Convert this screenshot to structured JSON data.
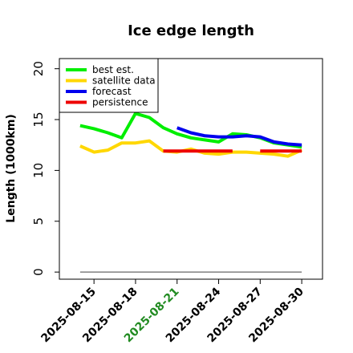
{
  "chart_data": {
    "type": "line",
    "title": "Ice edge length",
    "xlabel": "",
    "ylabel": "Length (1000km)",
    "ylim": [
      -0.7,
      21
    ],
    "xlim": [
      "2025-08-12T12:00",
      "2025-08-31T12:00"
    ],
    "yticks": [
      0,
      5,
      10,
      15,
      20
    ],
    "xticks": [
      "2025-08-15",
      "2025-08-18",
      "2025-08-21",
      "2025-08-24",
      "2025-08-27",
      "2025-08-30"
    ],
    "highlighted_xtick": "2025-08-21",
    "highlight_color": "#228B22",
    "legend_position": "top-left",
    "grid": false,
    "series": [
      {
        "name": "best est.",
        "color": "#00ee00",
        "x": [
          "2025-08-14",
          "2025-08-15",
          "2025-08-16",
          "2025-08-17",
          "2025-08-18",
          "2025-08-19",
          "2025-08-20",
          "2025-08-21",
          "2025-08-22",
          "2025-08-23",
          "2025-08-24",
          "2025-08-25",
          "2025-08-26",
          "2025-08-27",
          "2025-08-28",
          "2025-08-29",
          "2025-08-30"
        ],
        "values": [
          14.4,
          14.1,
          13.7,
          13.2,
          15.6,
          15.2,
          14.2,
          13.6,
          13.2,
          13.0,
          12.8,
          13.6,
          13.5,
          13.2,
          12.7,
          12.5,
          12.3
        ]
      },
      {
        "name": "satellite data",
        "color": "#ffd700",
        "x": [
          "2025-08-14",
          "2025-08-15",
          "2025-08-16",
          "2025-08-17",
          "2025-08-18",
          "2025-08-19",
          "2025-08-20",
          "2025-08-21",
          "2025-08-22",
          "2025-08-23",
          "2025-08-24",
          "2025-08-25",
          "2025-08-26",
          "2025-08-27",
          "2025-08-28",
          "2025-08-29",
          "2025-08-30"
        ],
        "values": [
          12.4,
          11.8,
          12.0,
          12.7,
          12.7,
          12.9,
          11.9,
          11.8,
          12.1,
          11.7,
          11.6,
          11.8,
          11.8,
          11.7,
          11.6,
          11.4,
          12.0
        ]
      },
      {
        "name": "forecast",
        "color": "#0000ee",
        "x": [
          "2025-08-21",
          "2025-08-22",
          "2025-08-23",
          "2025-08-24",
          "2025-08-25",
          "2025-08-26",
          "2025-08-27",
          "2025-08-28",
          "2025-08-29",
          "2025-08-30"
        ],
        "values": [
          14.2,
          13.7,
          13.4,
          13.3,
          13.3,
          13.4,
          13.3,
          12.8,
          12.6,
          12.5
        ]
      },
      {
        "name": "persistence",
        "color": "#ee0000",
        "x": [
          "2025-08-20",
          "2025-08-21",
          "2025-08-22",
          "2025-08-23",
          "2025-08-24",
          "2025-08-25",
          "2025-08-26",
          "2025-08-27",
          "2025-08-28",
          "2025-08-29",
          "2025-08-30"
        ],
        "values": [
          11.9,
          11.9,
          11.9,
          11.9,
          11.9,
          11.9,
          null,
          11.9,
          11.9,
          11.9,
          11.9
        ]
      }
    ],
    "baseline": {
      "color": "#808080",
      "x": [
        "2025-08-14",
        "2025-08-30"
      ],
      "values": [
        0,
        0
      ]
    }
  }
}
